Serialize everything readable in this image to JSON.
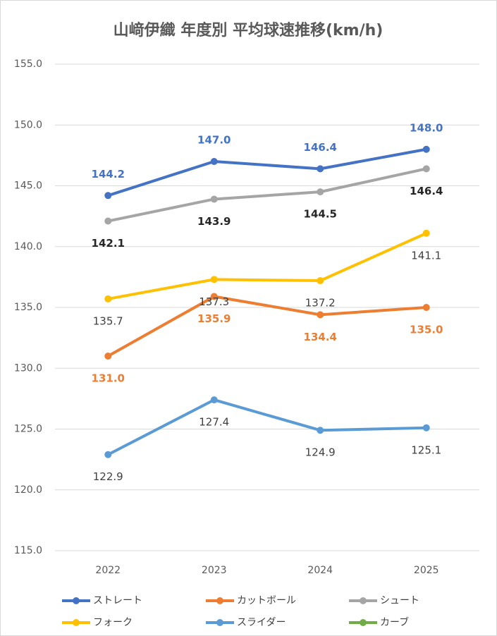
{
  "chart_data": {
    "type": "line",
    "title": "山﨑伊織 年度別 平均球速推移(km/h)",
    "categories": [
      "2022",
      "2023",
      "2024",
      "2025"
    ],
    "ylim": [
      115,
      155
    ],
    "yticks": [
      {
        "value": 115,
        "label": "115.0"
      },
      {
        "value": 120,
        "label": "120.0"
      },
      {
        "value": 125,
        "label": "125.0"
      },
      {
        "value": 130,
        "label": "130.0"
      },
      {
        "value": 135,
        "label": "135.0"
      },
      {
        "value": 140,
        "label": "140.0"
      },
      {
        "value": 145,
        "label": "145.0"
      },
      {
        "value": 150,
        "label": "150.0"
      },
      {
        "value": 155,
        "label": "155.0"
      }
    ],
    "grid": true,
    "legend": "bottom",
    "series": [
      {
        "name": "ストレート",
        "color": "#4472c4",
        "label_color": "#4472c4",
        "values": [
          144.2,
          147.0,
          146.4,
          148.0
        ],
        "value_labels": [
          "144.2",
          "147.0",
          "146.4",
          "148.0"
        ]
      },
      {
        "name": "カットボール",
        "color": "#ed7d31",
        "label_color": "#ed7d31",
        "values": [
          131.0,
          135.9,
          134.4,
          135.0
        ],
        "value_labels": [
          "131.0",
          "135.9",
          "134.4",
          "135.0"
        ]
      },
      {
        "name": "シュート",
        "color": "#a5a5a5",
        "label_color": "#262626",
        "values": [
          142.1,
          143.9,
          144.5,
          146.4
        ],
        "value_labels": [
          "142.1",
          "143.9",
          "144.5",
          "146.4"
        ]
      },
      {
        "name": "フォーク",
        "color": "#ffc000",
        "label_color": "#404040",
        "values": [
          135.7,
          137.3,
          137.2,
          141.1
        ],
        "value_labels": [
          "135.7",
          "137.3",
          "137.2",
          "141.1"
        ]
      },
      {
        "name": "スライダー",
        "color": "#5b9bd5",
        "label_color": "#404040",
        "values": [
          122.9,
          127.4,
          124.9,
          125.1
        ],
        "value_labels": [
          "122.9",
          "127.4",
          "124.9",
          "125.1"
        ]
      },
      {
        "name": "カーブ",
        "color": "#70ad47",
        "label_color": "#404040",
        "values": [
          null,
          null,
          null,
          null
        ]
      }
    ]
  }
}
